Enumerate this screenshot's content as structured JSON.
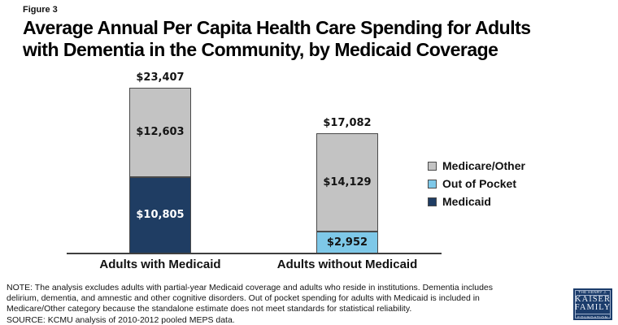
{
  "figure_label": "Figure 3",
  "title": {
    "line1": "Average Annual Per Capita Health Care Spending for Adults",
    "line2": "with Dementia in the Community, by Medicaid Coverage"
  },
  "colors": {
    "medicaid": "#1f3d63",
    "out_of_pocket": "#7ec8e8",
    "medicare_other": "#c3c3c3",
    "bar_border": "#4a4a4a",
    "logo_navy": "#1b3c6b"
  },
  "chart_data": {
    "type": "bar",
    "stacked": true,
    "title": "Average Annual Per Capita Health Care Spending for Adults with Dementia in the Community, by Medicaid Coverage",
    "categories": [
      "Adults with Medicaid",
      "Adults without Medicaid"
    ],
    "series": [
      {
        "name": "Medicaid",
        "color": "#1f3d63",
        "values": [
          10805,
          null
        ]
      },
      {
        "name": "Out of Pocket",
        "color": "#7ec8e8",
        "values": [
          null,
          2952
        ]
      },
      {
        "name": "Medicare/Other",
        "color": "#c3c3c3",
        "values": [
          12603,
          14129
        ]
      }
    ],
    "totals": [
      23407,
      17082
    ],
    "xlabel": "",
    "ylabel": "",
    "ylim": [
      0,
      25000
    ],
    "grid": false,
    "legend_position": "right",
    "value_labels": {
      "totals": [
        "$23,407",
        "$17,082"
      ],
      "segments": [
        [
          "$10,805",
          "$12,603"
        ],
        [
          "$2,952",
          "$14,129"
        ]
      ]
    }
  },
  "bars": [
    {
      "label": "Adults with Medicaid",
      "total": "$23,407",
      "gray_value": "$12,603",
      "bottom_value": "$10,805"
    },
    {
      "label": "Adults without Medicaid",
      "total": "$17,082",
      "gray_value": "$14,129",
      "bottom_value": "$2,952"
    }
  ],
  "legend": [
    {
      "label": "Medicare/Other",
      "color": "#c3c3c3"
    },
    {
      "label": "Out of Pocket",
      "color": "#7ec8e8"
    },
    {
      "label": "Medicaid",
      "color": "#1f3d63"
    }
  ],
  "note": {
    "lines": [
      "NOTE: The analysis excludes adults with partial-year Medicaid coverage and adults who reside in institutions. Dementia includes",
      "delirium, dementia, and amnestic and other cognitive disorders. Out of pocket spending for adults with Medicaid is included in",
      "Medicare/Other category because the standalone estimate does not meet standards for statistical reliability.",
      "SOURCE: KCMU analysis of 2010-2012 pooled MEPS data."
    ]
  },
  "logo": {
    "top": "THE HENRY J.",
    "name1": "KAISER",
    "name2": "FAMILY",
    "bottom": "FOUNDATION"
  }
}
